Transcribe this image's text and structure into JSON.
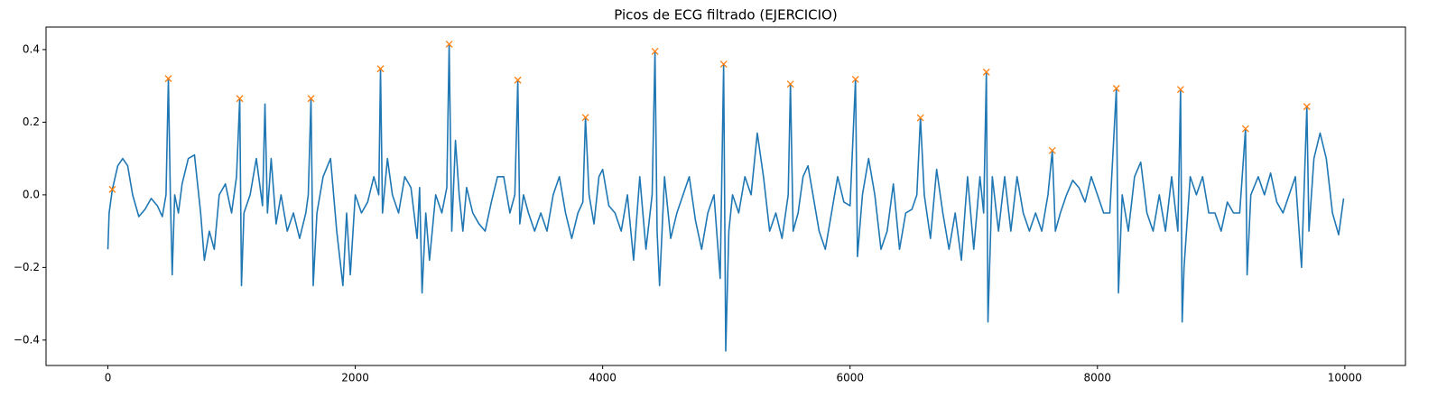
{
  "chart_data": {
    "type": "line",
    "title": "Picos de ECG filtrado (EJERCICIO)",
    "xlim": [
      -500,
      10490
    ],
    "ylim": [
      -0.47,
      0.462
    ],
    "xticks": [
      0,
      2000,
      4000,
      6000,
      8000,
      10000
    ],
    "yticks": [
      {
        "value": -0.4,
        "label": "−0.4"
      },
      {
        "value": -0.2,
        "label": "−0.2"
      },
      {
        "value": 0,
        "label": "0.0"
      },
      0.2,
      0.4
    ],
    "grid": false,
    "series": [
      {
        "color": "#1f77b4",
        "marker": "none",
        "line": true,
        "x": [
          0,
          10,
          36,
          80,
          120,
          160,
          200,
          250,
          300,
          350,
          400,
          440,
          470,
          489,
          505,
          520,
          540,
          570,
          600,
          650,
          700,
          750,
          780,
          820,
          860,
          900,
          950,
          1000,
          1040,
          1066,
          1080,
          1100,
          1150,
          1200,
          1250,
          1270,
          1290,
          1320,
          1360,
          1400,
          1450,
          1500,
          1550,
          1600,
          1620,
          1642,
          1660,
          1690,
          1740,
          1800,
          1850,
          1900,
          1930,
          1960,
          2000,
          2050,
          2100,
          2150,
          2190,
          2204,
          2220,
          2260,
          2300,
          2350,
          2400,
          2450,
          2500,
          2520,
          2540,
          2570,
          2600,
          2650,
          2700,
          2740,
          2759,
          2780,
          2810,
          2840,
          2870,
          2900,
          2950,
          3000,
          3050,
          3100,
          3150,
          3200,
          3250,
          3290,
          3314,
          3330,
          3360,
          3400,
          3450,
          3500,
          3550,
          3600,
          3650,
          3700,
          3750,
          3800,
          3840,
          3861,
          3890,
          3930,
          3970,
          4000,
          4050,
          4100,
          4150,
          4200,
          4250,
          4300,
          4350,
          4400,
          4423,
          4440,
          4460,
          4500,
          4550,
          4600,
          4650,
          4700,
          4750,
          4800,
          4850,
          4900,
          4950,
          4978,
          4995,
          5020,
          5050,
          5100,
          5150,
          5200,
          5250,
          5300,
          5350,
          5400,
          5450,
          5500,
          5518,
          5540,
          5580,
          5620,
          5660,
          5700,
          5750,
          5800,
          5850,
          5900,
          5950,
          6000,
          6044,
          6060,
          6100,
          6150,
          6200,
          6250,
          6300,
          6350,
          6400,
          6450,
          6500,
          6540,
          6569,
          6600,
          6650,
          6700,
          6750,
          6800,
          6850,
          6900,
          6950,
          7000,
          7050,
          7080,
          7102,
          7115,
          7150,
          7200,
          7250,
          7300,
          7350,
          7400,
          7450,
          7500,
          7550,
          7600,
          7635,
          7660,
          7700,
          7750,
          7800,
          7850,
          7900,
          7950,
          8000,
          8050,
          8100,
          8153,
          8170,
          8200,
          8250,
          8300,
          8350,
          8400,
          8450,
          8500,
          8550,
          8600,
          8650,
          8672,
          8685,
          8700,
          8750,
          8800,
          8850,
          8900,
          8950,
          9000,
          9050,
          9100,
          9150,
          9197,
          9210,
          9240,
          9300,
          9350,
          9400,
          9450,
          9500,
          9550,
          9600,
          9650,
          9693,
          9710,
          9750,
          9800,
          9850,
          9900,
          9950,
          9990
        ],
        "values": [
          -0.15,
          -0.05,
          0.015,
          0.08,
          0.1,
          0.08,
          0.0,
          -0.06,
          -0.04,
          -0.01,
          -0.03,
          -0.06,
          0.0,
          0.32,
          0.0,
          -0.22,
          0.0,
          -0.05,
          0.03,
          0.1,
          0.11,
          -0.05,
          -0.18,
          -0.1,
          -0.15,
          0.0,
          0.03,
          -0.05,
          0.05,
          0.265,
          -0.25,
          -0.05,
          0.0,
          0.1,
          -0.03,
          0.25,
          -0.05,
          0.1,
          -0.08,
          0.0,
          -0.1,
          -0.05,
          -0.12,
          -0.05,
          0.0,
          0.265,
          -0.25,
          -0.05,
          0.05,
          0.1,
          -0.1,
          -0.25,
          -0.05,
          -0.22,
          0.0,
          -0.05,
          -0.02,
          0.05,
          0.0,
          0.347,
          -0.05,
          0.1,
          0.0,
          -0.05,
          0.05,
          0.02,
          -0.12,
          0.02,
          -0.27,
          -0.05,
          -0.18,
          0.0,
          -0.05,
          0.02,
          0.415,
          -0.1,
          0.15,
          0.0,
          -0.1,
          0.02,
          -0.05,
          -0.08,
          -0.1,
          -0.02,
          0.05,
          0.05,
          -0.05,
          0.0,
          0.316,
          -0.08,
          0.0,
          -0.05,
          -0.1,
          -0.05,
          -0.1,
          0.0,
          0.05,
          -0.05,
          -0.12,
          -0.05,
          -0.02,
          0.213,
          0.0,
          -0.08,
          0.05,
          0.07,
          -0.03,
          -0.05,
          -0.1,
          0.0,
          -0.18,
          0.05,
          -0.15,
          0.0,
          0.395,
          -0.1,
          -0.25,
          0.05,
          -0.12,
          -0.05,
          0.0,
          0.05,
          -0.07,
          -0.15,
          -0.05,
          0.0,
          -0.23,
          0.36,
          -0.43,
          -0.1,
          0.0,
          -0.05,
          0.05,
          0.0,
          0.17,
          0.05,
          -0.1,
          -0.05,
          -0.12,
          0.0,
          0.305,
          -0.1,
          -0.05,
          0.05,
          0.08,
          0.0,
          -0.1,
          -0.15,
          -0.05,
          0.05,
          -0.02,
          -0.03,
          0.318,
          -0.17,
          0.0,
          0.1,
          0.0,
          -0.15,
          -0.1,
          0.03,
          -0.15,
          -0.05,
          -0.04,
          0.0,
          0.212,
          0.0,
          -0.12,
          0.07,
          -0.05,
          -0.15,
          -0.05,
          -0.18,
          0.05,
          -0.15,
          0.05,
          -0.05,
          0.338,
          -0.35,
          0.05,
          -0.1,
          0.05,
          -0.1,
          0.05,
          -0.05,
          -0.1,
          -0.05,
          -0.1,
          0.0,
          0.122,
          -0.1,
          -0.05,
          0.0,
          0.04,
          0.02,
          -0.02,
          0.05,
          0.0,
          -0.05,
          -0.05,
          0.293,
          -0.27,
          0.0,
          -0.1,
          0.05,
          0.09,
          -0.05,
          -0.1,
          0.0,
          -0.1,
          0.05,
          -0.1,
          0.29,
          -0.35,
          -0.2,
          0.05,
          0.0,
          0.05,
          -0.05,
          -0.05,
          -0.1,
          -0.02,
          -0.05,
          -0.05,
          0.182,
          -0.22,
          0.0,
          0.05,
          0.0,
          0.06,
          -0.02,
          -0.05,
          0.0,
          0.05,
          -0.2,
          0.243,
          -0.1,
          0.1,
          0.17,
          0.1,
          -0.05,
          -0.11,
          -0.01
        ]
      },
      {
        "color": "#ff7f0e",
        "marker": "x",
        "line": false,
        "x": [
          36,
          489,
          1066,
          1642,
          2204,
          2759,
          3314,
          3861,
          4423,
          4978,
          5518,
          6044,
          6569,
          7102,
          7635,
          8153,
          8672,
          9197,
          9693
        ],
        "values": [
          0.015,
          0.32,
          0.265,
          0.265,
          0.347,
          0.415,
          0.316,
          0.213,
          0.395,
          0.36,
          0.305,
          0.318,
          0.212,
          0.338,
          0.122,
          0.293,
          0.29,
          0.182,
          0.243
        ]
      }
    ]
  }
}
